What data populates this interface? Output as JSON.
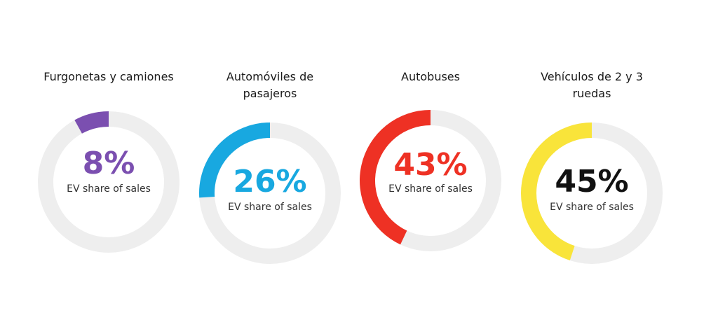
{
  "chart_data": [
    {
      "type": "pie",
      "title": "Furgonetas y camiones",
      "title_lines": [
        "Furgonetas y camiones"
      ],
      "value": 8,
      "value_label": "8%",
      "caption": "EV share of sales",
      "color": "#7b4fb0",
      "track_color": "#eeeeee"
    },
    {
      "type": "pie",
      "title": "Automóviles de pasajeros",
      "title_lines": [
        "Automóviles de",
        "pasajeros"
      ],
      "value": 26,
      "value_label": "26%",
      "caption": "EV share of sales",
      "color": "#18a8e0",
      "track_color": "#eeeeee"
    },
    {
      "type": "pie",
      "title": "Autobuses",
      "title_lines": [
        "Autobuses"
      ],
      "value": 43,
      "value_label": "43%",
      "caption": "EV share of sales",
      "color": "#ee3124",
      "track_color": "#eeeeee"
    },
    {
      "type": "pie",
      "title": "Vehículos de 2 y 3 ruedas",
      "title_lines": [
        "Vehículos de 2 y 3",
        "ruedas"
      ],
      "value": 45,
      "value_label": "45%",
      "caption": "EV share of sales",
      "color": "#f9e43a",
      "value_color": "#111111",
      "track_color": "#eeeeee"
    }
  ]
}
